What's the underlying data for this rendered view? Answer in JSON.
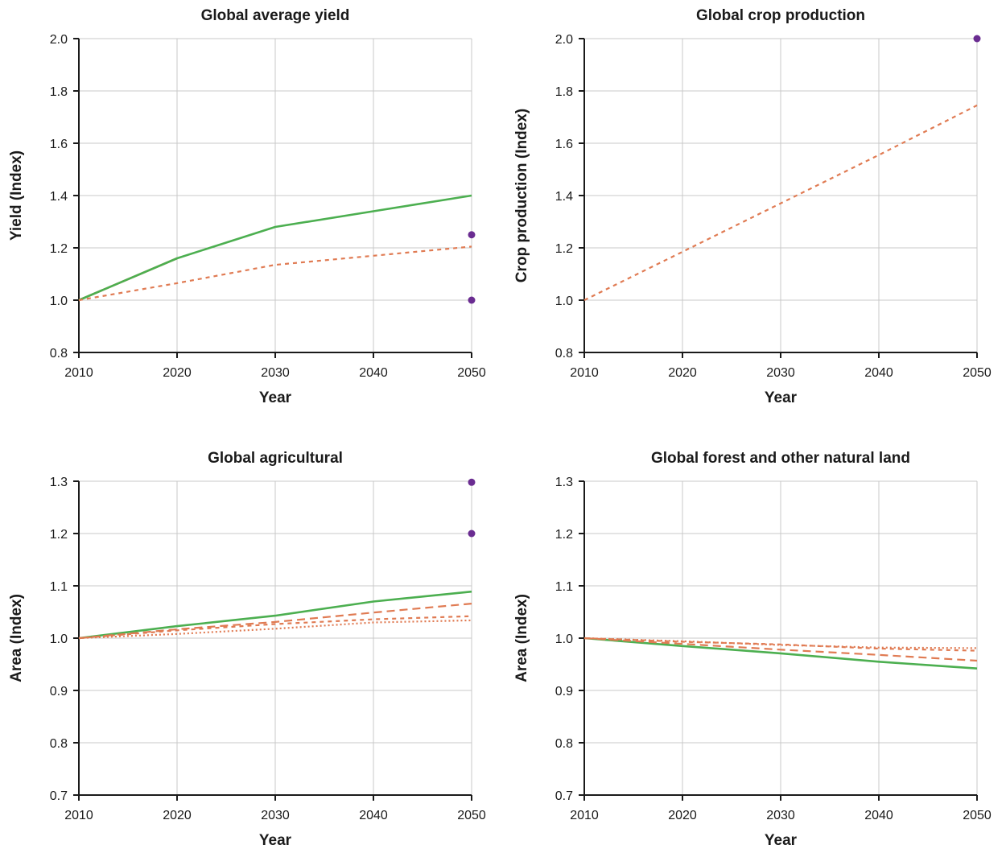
{
  "colors": {
    "green": "#4caf50",
    "orange": "#e07b53",
    "purple": "#6a2c91",
    "grid": "#c8c8c8",
    "axis": "#1a1a1a"
  },
  "chart_data": [
    {
      "type": "line",
      "title": "Global average yield",
      "xlabel": "Year",
      "ylabel": "Yield (Index)",
      "xlim": [
        2010,
        2050
      ],
      "ylim": [
        0.8,
        2.0
      ],
      "xticks": [
        "2010",
        "2020",
        "2030",
        "2040",
        "2050"
      ],
      "yticks": [
        "0.8",
        "1.0",
        "1.2",
        "1.4",
        "1.6",
        "1.8",
        "2.0"
      ],
      "grid": true,
      "series": [
        {
          "style": "solid",
          "color": "orange",
          "x": [
            2010,
            2020
          ],
          "y": [
            1.0,
            1.16
          ]
        },
        {
          "style": "solid",
          "color": "green",
          "x": [
            2010,
            2020,
            2030,
            2040,
            2050
          ],
          "y": [
            1.0,
            1.16,
            1.28,
            1.34,
            1.4
          ]
        },
        {
          "style": "dashed-short",
          "color": "orange",
          "x": [
            2010,
            2020,
            2030,
            2040,
            2050
          ],
          "y": [
            1.0,
            1.065,
            1.135,
            1.17,
            1.205
          ]
        }
      ],
      "points": [
        {
          "x": 2050,
          "y": 1.25,
          "color": "purple"
        },
        {
          "x": 2050,
          "y": 1.0,
          "color": "purple"
        }
      ]
    },
    {
      "type": "line",
      "title": "Global crop production",
      "xlabel": "Year",
      "ylabel": "Crop production (Index)",
      "xlim": [
        2010,
        2050
      ],
      "ylim": [
        0.8,
        2.0
      ],
      "xticks": [
        "2010",
        "2020",
        "2030",
        "2040",
        "2050"
      ],
      "yticks": [
        "0.8",
        "1.0",
        "1.2",
        "1.4",
        "1.6",
        "1.8",
        "2.0"
      ],
      "grid": true,
      "series": [
        {
          "style": "dashed-short",
          "color": "orange",
          "x": [
            2010,
            2020,
            2030,
            2040,
            2050
          ],
          "y": [
            1.0,
            1.185,
            1.37,
            1.555,
            1.745
          ]
        }
      ],
      "points": [
        {
          "x": 2050,
          "y": 2.0,
          "color": "purple"
        }
      ]
    },
    {
      "type": "line",
      "title": "Global agricultural",
      "xlabel": "Year",
      "ylabel": "Area (Index)",
      "xlim": [
        2010,
        2050
      ],
      "ylim": [
        0.7,
        1.3
      ],
      "xticks": [
        "2010",
        "2020",
        "2030",
        "2040",
        "2050"
      ],
      "yticks": [
        "0.7",
        "0.8",
        "0.9",
        "1.0",
        "1.1",
        "1.2",
        "1.3"
      ],
      "grid": true,
      "series": [
        {
          "style": "solid",
          "color": "green",
          "x": [
            2010,
            2020,
            2030,
            2040,
            2050
          ],
          "y": [
            1.0,
            1.023,
            1.043,
            1.07,
            1.089
          ]
        },
        {
          "style": "dashed-long",
          "color": "orange",
          "x": [
            2010,
            2020,
            2030,
            2040,
            2050
          ],
          "y": [
            1.0,
            1.017,
            1.031,
            1.049,
            1.066
          ]
        },
        {
          "style": "dashed-short",
          "color": "orange",
          "x": [
            2010,
            2020,
            2030,
            2040,
            2050
          ],
          "y": [
            1.0,
            1.015,
            1.027,
            1.036,
            1.042
          ]
        },
        {
          "style": "dotted",
          "color": "orange",
          "x": [
            2010,
            2020,
            2030,
            2040,
            2050
          ],
          "y": [
            1.0,
            1.008,
            1.018,
            1.03,
            1.034
          ]
        }
      ],
      "points": [
        {
          "x": 2050,
          "y": 1.298,
          "color": "purple"
        },
        {
          "x": 2050,
          "y": 1.2,
          "color": "purple"
        }
      ]
    },
    {
      "type": "line",
      "title": "Global forest and other natural land",
      "xlabel": "Year",
      "ylabel": "Area (Index)",
      "xlim": [
        2010,
        2050
      ],
      "ylim": [
        0.7,
        1.3
      ],
      "xticks": [
        "2010",
        "2020",
        "2030",
        "2040",
        "2050"
      ],
      "yticks": [
        "0.7",
        "0.8",
        "0.9",
        "1.0",
        "1.1",
        "1.2",
        "1.3"
      ],
      "grid": true,
      "series": [
        {
          "style": "solid",
          "color": "green",
          "x": [
            2010,
            2020,
            2030,
            2040,
            2050
          ],
          "y": [
            1.0,
            0.985,
            0.971,
            0.955,
            0.942
          ]
        },
        {
          "style": "dashed-long",
          "color": "orange",
          "x": [
            2010,
            2020,
            2030,
            2040,
            2050
          ],
          "y": [
            1.0,
            0.989,
            0.978,
            0.968,
            0.957
          ]
        },
        {
          "style": "dashed-short",
          "color": "orange",
          "x": [
            2010,
            2020,
            2030,
            2040,
            2050
          ],
          "y": [
            1.0,
            0.993,
            0.988,
            0.98,
            0.976
          ]
        },
        {
          "style": "dotted",
          "color": "orange",
          "x": [
            2010,
            2020,
            2030,
            2040,
            2050
          ],
          "y": [
            1.0,
            0.994,
            0.987,
            0.982,
            0.981
          ]
        }
      ],
      "points": []
    }
  ]
}
